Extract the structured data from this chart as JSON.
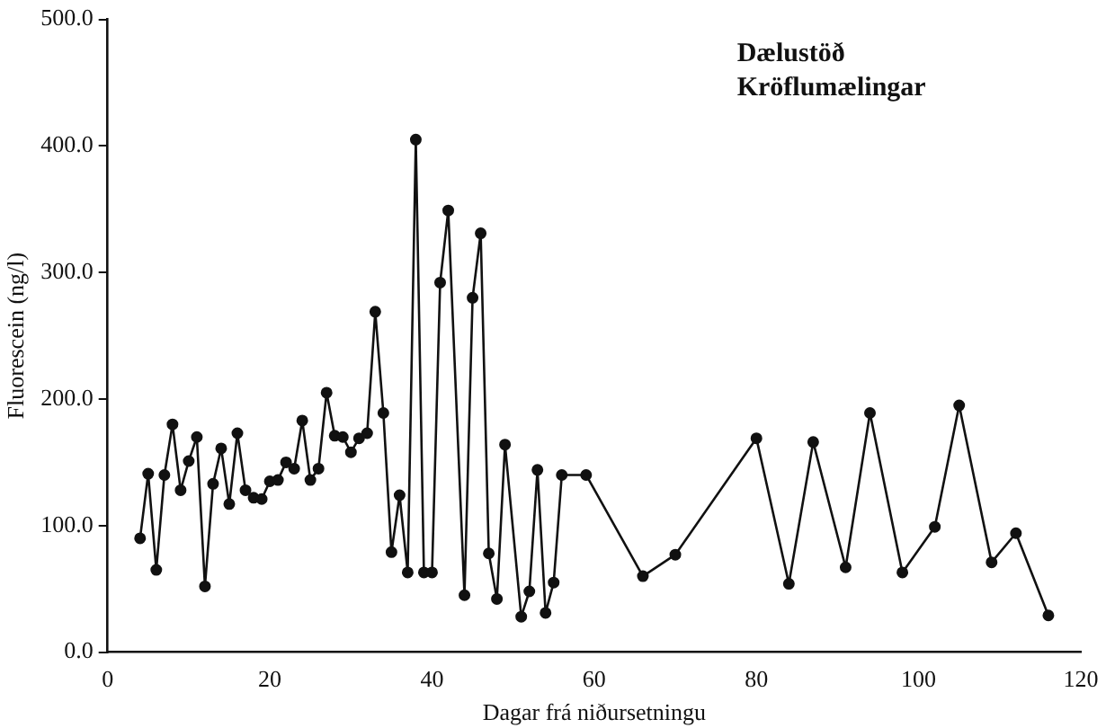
{
  "chart_data": {
    "type": "line",
    "title": "Dælustöð\nKröflumælingar",
    "xlabel": "Dagar frá niðursetningu",
    "ylabel": "Fluorescein (ng/l)",
    "x": [
      4,
      5,
      6,
      7,
      8,
      9,
      10,
      11,
      12,
      13,
      14,
      15,
      16,
      17,
      18,
      19,
      20,
      21,
      22,
      23,
      24,
      25,
      26,
      27,
      28,
      29,
      30,
      31,
      32,
      33,
      34,
      35,
      36,
      37,
      38,
      39,
      40,
      41,
      42,
      44,
      45,
      46,
      47,
      48,
      49,
      51,
      52,
      53,
      54,
      55,
      56,
      59,
      66,
      70,
      80,
      84,
      87,
      91,
      94,
      98,
      102,
      105,
      109,
      112,
      116
    ],
    "series": [
      {
        "color": "#111111",
        "values": [
          90,
          141,
          65,
          140,
          180,
          128,
          151,
          170,
          52,
          133,
          161,
          117,
          173,
          128,
          122,
          121,
          135,
          136,
          150,
          145,
          183,
          136,
          145,
          205,
          171,
          170,
          158,
          169,
          173,
          269,
          189,
          79,
          124,
          63,
          405,
          63,
          63,
          292,
          349,
          45,
          280,
          331,
          78,
          42,
          164,
          28,
          48,
          144,
          31,
          55,
          140,
          140,
          60,
          77,
          169,
          54,
          166,
          67,
          189,
          63,
          99,
          195,
          71,
          94,
          29
        ]
      }
    ],
    "xlim": [
      0,
      120
    ],
    "xticks": [
      0,
      20,
      40,
      60,
      80,
      100,
      120
    ],
    "ylim": [
      0,
      500
    ],
    "yticks": [
      {
        "value": 0,
        "label": "0.0"
      },
      {
        "value": 100,
        "label": "100.0"
      },
      {
        "value": 200,
        "label": "200.0"
      },
      {
        "value": 300,
        "label": "300.0"
      },
      {
        "value": 400,
        "label": "400.0"
      },
      {
        "value": 500,
        "label": "500.0"
      }
    ],
    "marker": "circle",
    "line_style": "solid",
    "grid": false,
    "legend": false
  }
}
